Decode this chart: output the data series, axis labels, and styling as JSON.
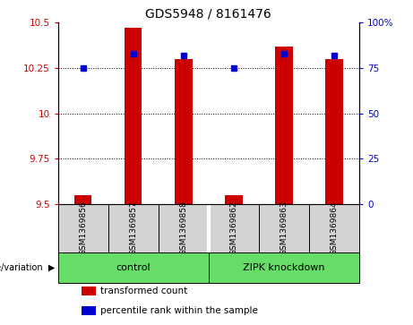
{
  "title": "GDS5948 / 8161476",
  "samples": [
    "GSM1369856",
    "GSM1369857",
    "GSM1369858",
    "GSM1369862",
    "GSM1369863",
    "GSM1369864"
  ],
  "transformed_count": [
    9.55,
    10.47,
    10.3,
    9.55,
    10.37,
    10.3
  ],
  "percentile_rank": [
    75,
    83,
    82,
    75,
    83,
    82
  ],
  "ylim_left": [
    9.5,
    10.5
  ],
  "ylim_right": [
    0,
    100
  ],
  "yticks_left": [
    9.5,
    9.75,
    10.0,
    10.25,
    10.5
  ],
  "yticks_right": [
    0,
    25,
    50,
    75,
    100
  ],
  "ytick_labels_left": [
    "9.5",
    "9.75",
    "10",
    "10.25",
    "10.5"
  ],
  "ytick_labels_right": [
    "0",
    "25",
    "50",
    "75",
    "100%"
  ],
  "grid_lines": [
    9.75,
    10.0,
    10.25
  ],
  "group_info": [
    {
      "label": "control",
      "start": 0,
      "end": 2
    },
    {
      "label": "ZIPK knockdown",
      "start": 3,
      "end": 5
    }
  ],
  "bar_color": "#cc0000",
  "percentile_color": "#0000cc",
  "bar_width": 0.35,
  "background_plot": "#ffffff",
  "background_sample": "#d3d3d3",
  "background_group": "#66dd66",
  "genotype_label": "genotype/variation",
  "legend_items": [
    "transformed count",
    "percentile rank within the sample"
  ],
  "legend_colors": [
    "#cc0000",
    "#0000cc"
  ],
  "gap_color": "#ffffff"
}
